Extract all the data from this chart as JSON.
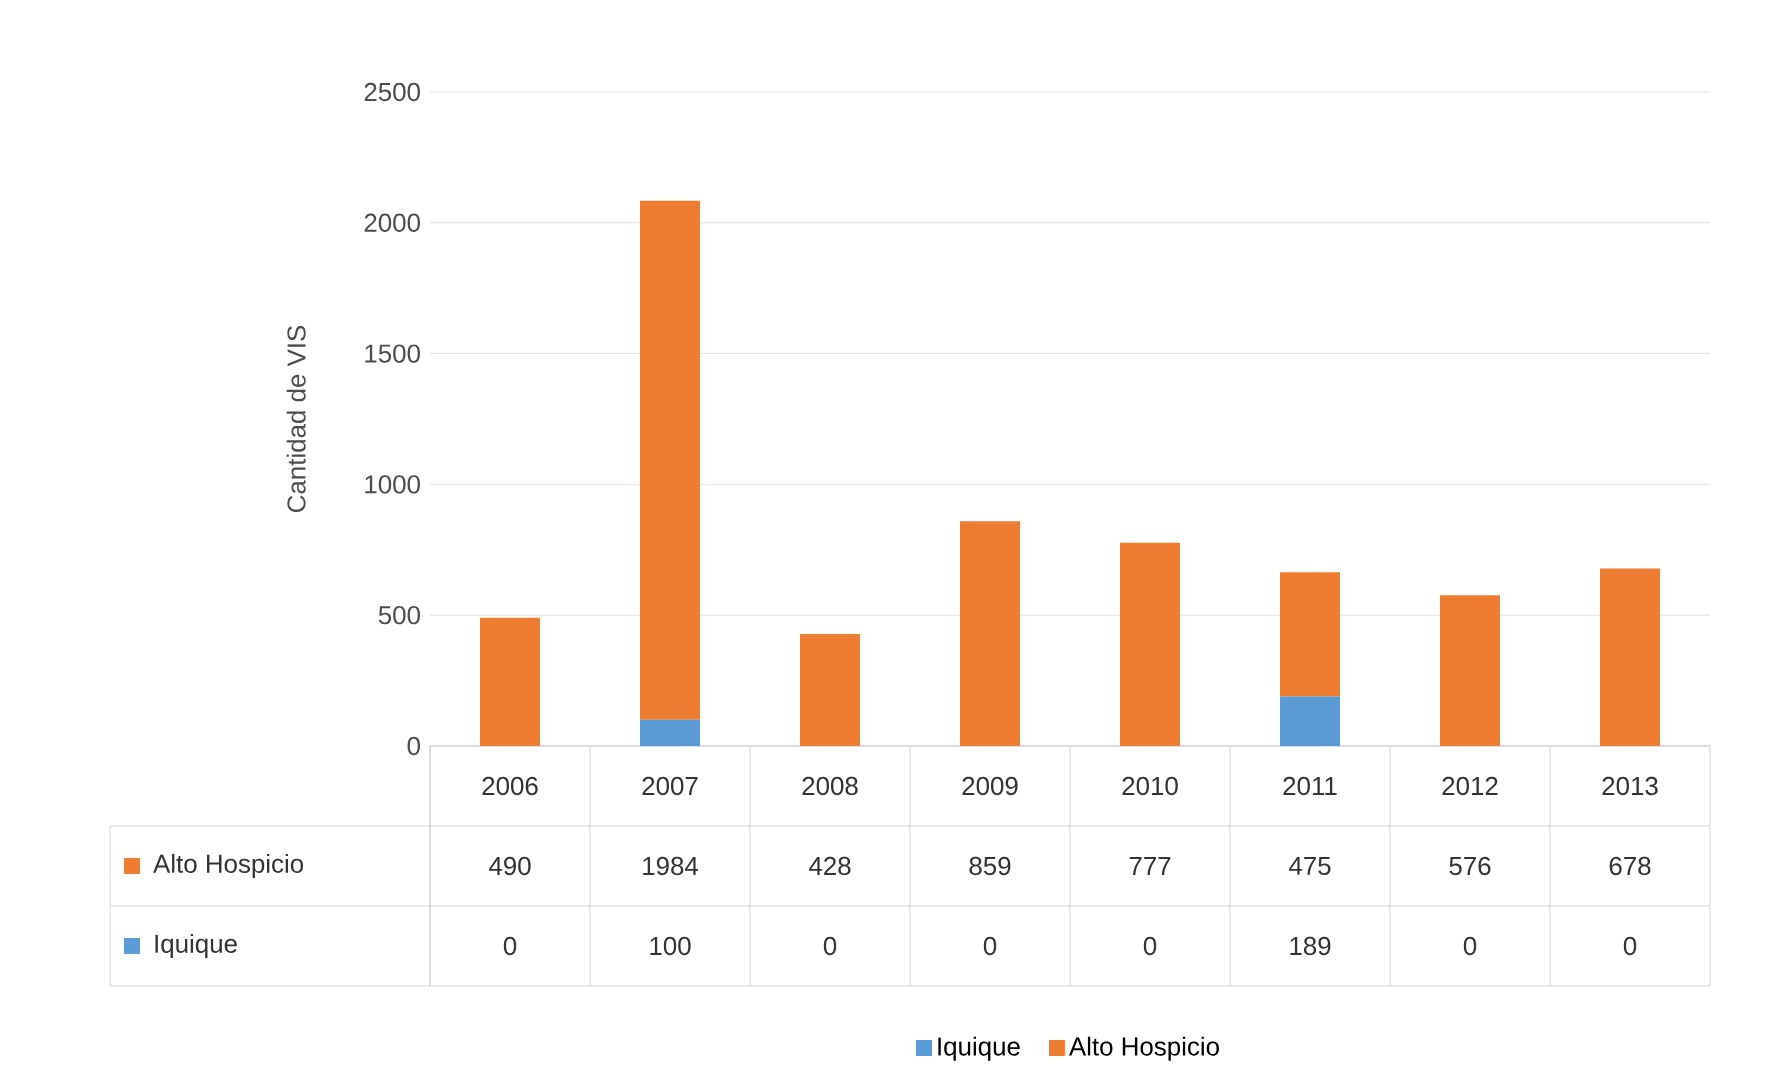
{
  "chart_data": {
    "type": "bar",
    "stacked": true,
    "ylabel": "Cantidad de VIS",
    "categories": [
      "2006",
      "2007",
      "2008",
      "2009",
      "2010",
      "2011",
      "2012",
      "2013"
    ],
    "series": [
      {
        "name": "Iquique",
        "color": "#5b9bd5",
        "values": [
          0,
          100,
          0,
          0,
          0,
          189,
          0,
          0
        ]
      },
      {
        "name": "Alto Hospicio",
        "color": "#ed7d31",
        "values": [
          490,
          1984,
          428,
          859,
          777,
          475,
          576,
          678
        ]
      }
    ],
    "ylim": [
      0,
      2500
    ],
    "yticks": [
      0,
      500,
      1000,
      1500,
      2000,
      2500
    ],
    "grid": "y",
    "legend": "bottom",
    "data_labels": true
  }
}
